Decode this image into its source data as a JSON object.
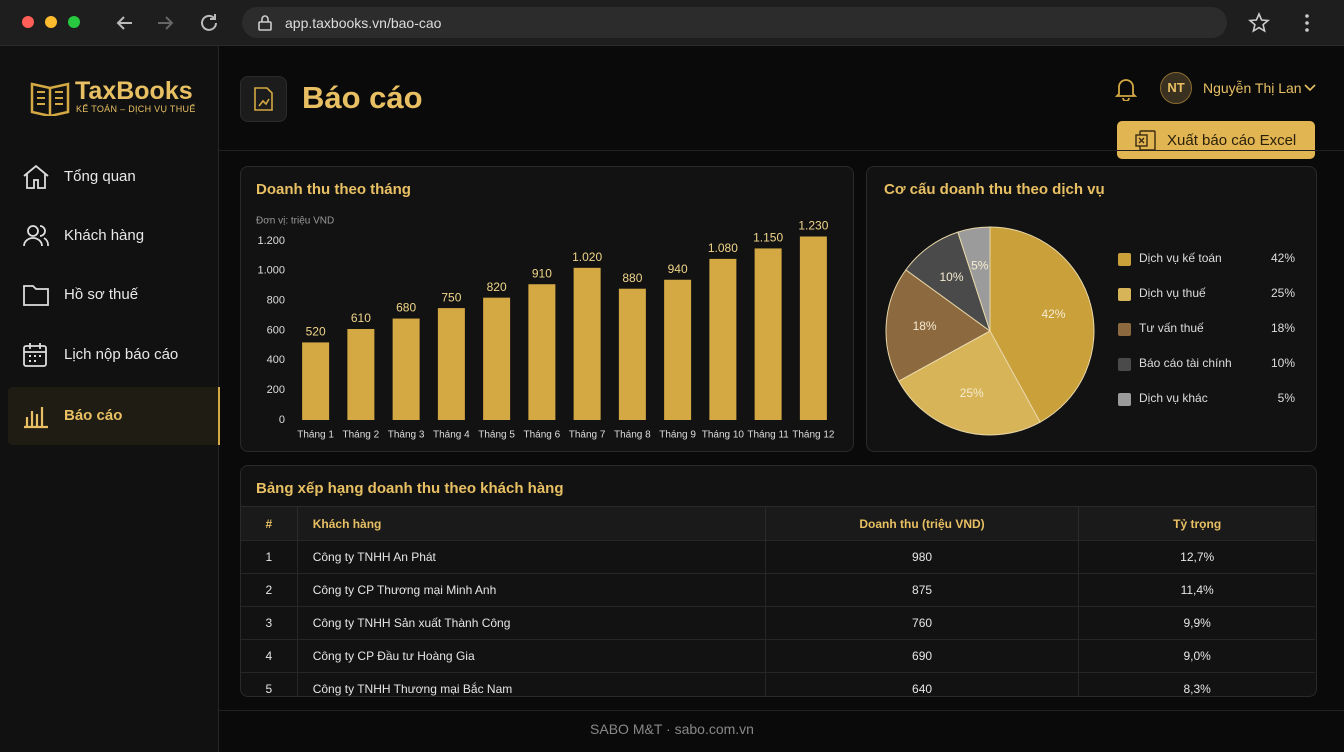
{
  "browser": {
    "url": "app.taxbooks.vn/bao-cao"
  },
  "sidebar": {
    "brand": "TaxBooks",
    "tagline": "KẾ TOÁN – DỊCH VỤ THUẾ",
    "nav": [
      "Tổng quan",
      "Khách hàng",
      "Hồ sơ thuế",
      "Lịch nộp báo cáo",
      "Báo cáo"
    ],
    "active_nav": 4
  },
  "header": {
    "title": "Báo cáo",
    "user_initials": "NT",
    "user_name": "Nguyễn Thị Lan",
    "export_button": "Xuất báo cáo Excel"
  },
  "chart_data": [
    {
      "type": "bar",
      "title": "Doanh thu theo tháng",
      "y_label": "Đơn vị: triệu VND",
      "categories": [
        "Tháng 1",
        "Tháng 2",
        "Tháng 3",
        "Tháng 4",
        "Tháng 5",
        "Tháng 6",
        "Tháng 7",
        "Tháng 8",
        "Tháng 9",
        "Tháng 10",
        "Tháng 11",
        "Tháng 12"
      ],
      "values": [
        520,
        610,
        680,
        750,
        820,
        910,
        1020,
        880,
        940,
        1080,
        1150,
        1230
      ],
      "value_labels": [
        "520",
        "610",
        "680",
        "750",
        "820",
        "910",
        "1.020",
        "880",
        "940",
        "1.080",
        "1.150",
        "1.230"
      ],
      "color": "#d4a843",
      "ylim": [
        0,
        1250
      ],
      "yticks": [
        0,
        200,
        400,
        600,
        800,
        {
          "value": 1000,
          "label": "1.000"
        },
        {
          "value": 1200,
          "label": "1.200"
        }
      ]
    },
    {
      "type": "pie",
      "title": "Cơ cấu doanh thu theo dịch vụ",
      "categories": [
        "Dịch vụ kế toán",
        "Dịch vụ thuế",
        "Tư vấn thuế",
        "Báo cáo tài chính",
        "Dịch vụ khác"
      ],
      "values": [
        42,
        25,
        18,
        10,
        5
      ],
      "value_labels": [
        "42%",
        "25%",
        "18%",
        "10%",
        "5%"
      ],
      "colors": [
        "#c9a03a",
        "#d8b459",
        "#8d6940",
        "#4a4a4a",
        "#9b9b9b"
      ]
    }
  ],
  "table": {
    "title": "Bảng xếp hạng doanh thu theo khách hàng",
    "columns": [
      "#",
      "Khách hàng",
      "Doanh thu (triệu VND)",
      "Tỷ trọng"
    ],
    "rows": [
      [
        "1",
        "Công ty TNHH An Phát",
        "980",
        "12,7%"
      ],
      [
        "2",
        "Công ty CP Thương mại Minh Anh",
        "875",
        "11,4%"
      ],
      [
        "3",
        "Công ty TNHH Sản xuất Thành Công",
        "760",
        "9,9%"
      ],
      [
        "4",
        "Công ty CP Đầu tư Hoàng Gia",
        "690",
        "9,0%"
      ],
      [
        "5",
        "Công ty TNHH Thương mại Bắc Nam",
        "640",
        "8,3%"
      ]
    ]
  },
  "footer": "SABO M&T · sabo.com.vn"
}
